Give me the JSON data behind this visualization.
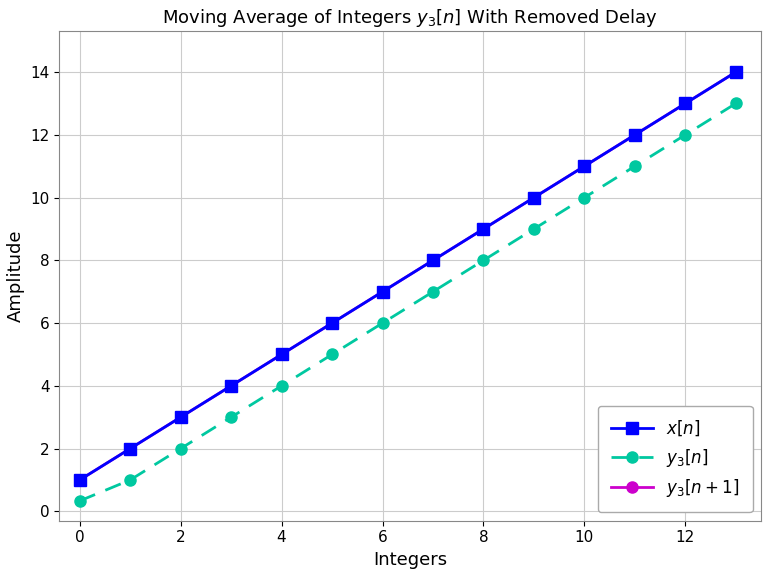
{
  "title": "Moving Average of Integers $y_3[n]$ With Removed Delay",
  "xlabel": "Integers",
  "ylabel": "Amplitude",
  "x_n": [
    0,
    1,
    2,
    3,
    4,
    5,
    6,
    7,
    8,
    9,
    10,
    11,
    12,
    13
  ],
  "x_vals": [
    1,
    2,
    3,
    4,
    5,
    6,
    7,
    8,
    9,
    10,
    11,
    12,
    13,
    14
  ],
  "y3_n_x": [
    0,
    1,
    2,
    3,
    4,
    5,
    6,
    7,
    8,
    9,
    10,
    11,
    12,
    13
  ],
  "y3_n_vals": [
    0.3333,
    1.0,
    2.0,
    3.0,
    4.0,
    5.0,
    6.0,
    7.0,
    8.0,
    9.0,
    10.0,
    11.0,
    12.0,
    13.0
  ],
  "y3_n1_x": [
    0,
    1,
    2,
    3,
    4,
    5,
    6,
    7,
    8,
    9,
    10,
    11,
    12,
    13
  ],
  "y3_n1_vals": [
    1.0,
    2.0,
    3.0,
    4.0,
    5.0,
    6.0,
    7.0,
    8.0,
    9.0,
    10.0,
    11.0,
    12.0,
    13.0,
    14.0
  ],
  "color_xn": "#0000ff",
  "color_y3n": "#00c8a0",
  "color_y3n1": "#cc00cc",
  "bg_color": "#ffffff",
  "grid_color": "#cccccc",
  "xticks": [
    0,
    2,
    4,
    6,
    8,
    10,
    12
  ],
  "yticks": [
    0,
    2,
    4,
    6,
    8,
    10,
    12,
    14
  ],
  "xlim": [
    -0.4,
    13.5
  ],
  "ylim": [
    -0.3,
    15.3
  ],
  "title_fontsize": 13,
  "label_fontsize": 13,
  "tick_fontsize": 11,
  "legend_fontsize": 12,
  "linewidth": 2.0,
  "marker_size_sq": 9,
  "marker_size_circ": 8
}
